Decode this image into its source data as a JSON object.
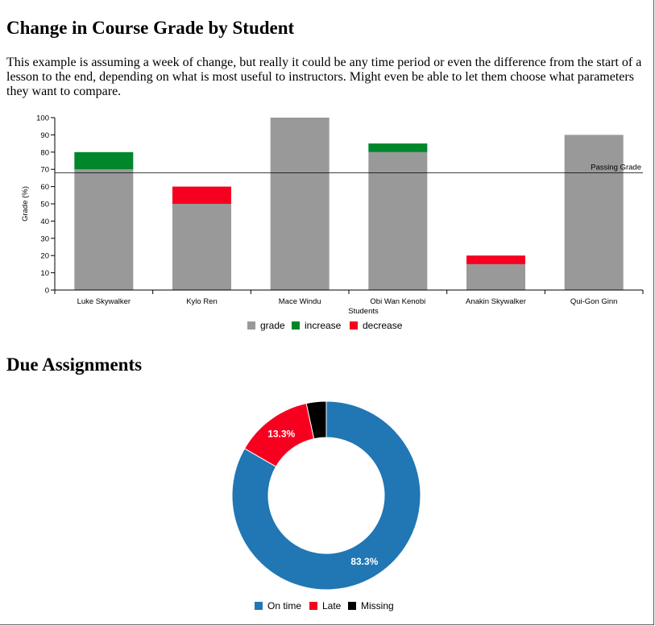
{
  "colors": {
    "grade": "#999999",
    "increase": "#00862b",
    "decrease": "#f70020",
    "on_time": "#2077b4",
    "late": "#f70020",
    "missing": "#000000"
  },
  "section1": {
    "title": "Change in Course Grade by Student",
    "description": "This example is assuming a week of change, but really it could be any time period or even the difference from the start of a lesson to the end, depending on what is most useful to instructors. Might even be able to let them choose what parameters they want to compare."
  },
  "section2": {
    "title": "Due Assignments"
  },
  "chart_data": [
    {
      "type": "bar",
      "title": "",
      "xlabel": "Students",
      "ylabel": "Grade (%)",
      "ylim": [
        0,
        100
      ],
      "yticks": [
        0,
        10,
        20,
        30,
        40,
        50,
        60,
        70,
        80,
        90,
        100
      ],
      "categories": [
        "Luke Skywalker",
        "Kylo Ren",
        "Mace Windu",
        "Obi Wan Kenobi",
        "Anakin Skywalker",
        "Qui-Gon Ginn"
      ],
      "series": [
        {
          "name": "grade",
          "values": [
            70,
            50,
            100,
            80,
            15,
            90
          ]
        },
        {
          "name": "increase",
          "values": [
            10,
            0,
            0,
            5,
            0,
            0
          ]
        },
        {
          "name": "decrease",
          "values": [
            0,
            10,
            0,
            0,
            5,
            0
          ]
        }
      ],
      "reference_line": {
        "value": 68,
        "label": "Passing Grade"
      },
      "legend_position": "bottom"
    },
    {
      "type": "pie",
      "donut": true,
      "slices": [
        {
          "name": "On time",
          "value": 83.3,
          "label": "83.3%"
        },
        {
          "name": "Late",
          "value": 13.3,
          "label": "13.3%"
        },
        {
          "name": "Missing",
          "value": 3.4,
          "label": ""
        }
      ],
      "legend_position": "bottom"
    }
  ]
}
